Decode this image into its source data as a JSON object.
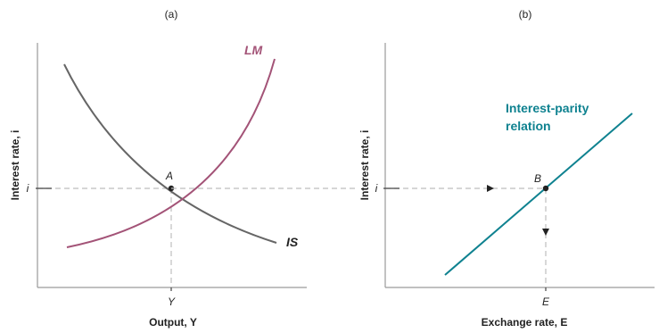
{
  "colors": {
    "lm": "#a35377",
    "is": "#666666",
    "parity": "#0f8290",
    "axis": "#9a9a9a",
    "dashed": "#bdbdbd",
    "text": "#222222"
  },
  "panel_a": {
    "tag": "(a)",
    "y_axis_title": "Interest rate, i",
    "x_axis_title": "Output, Y",
    "i_tick": "i",
    "y_tick": "Y",
    "point": "A",
    "lm_label": "LM",
    "is_label": "IS"
  },
  "panel_b": {
    "tag": "(b)",
    "y_axis_title": "Interest rate, i",
    "x_axis_title": "Exchange rate, E",
    "i_tick": "i",
    "e_tick": "E",
    "point": "B",
    "relation_label_line1": "Interest-parity",
    "relation_label_line2": "relation"
  }
}
